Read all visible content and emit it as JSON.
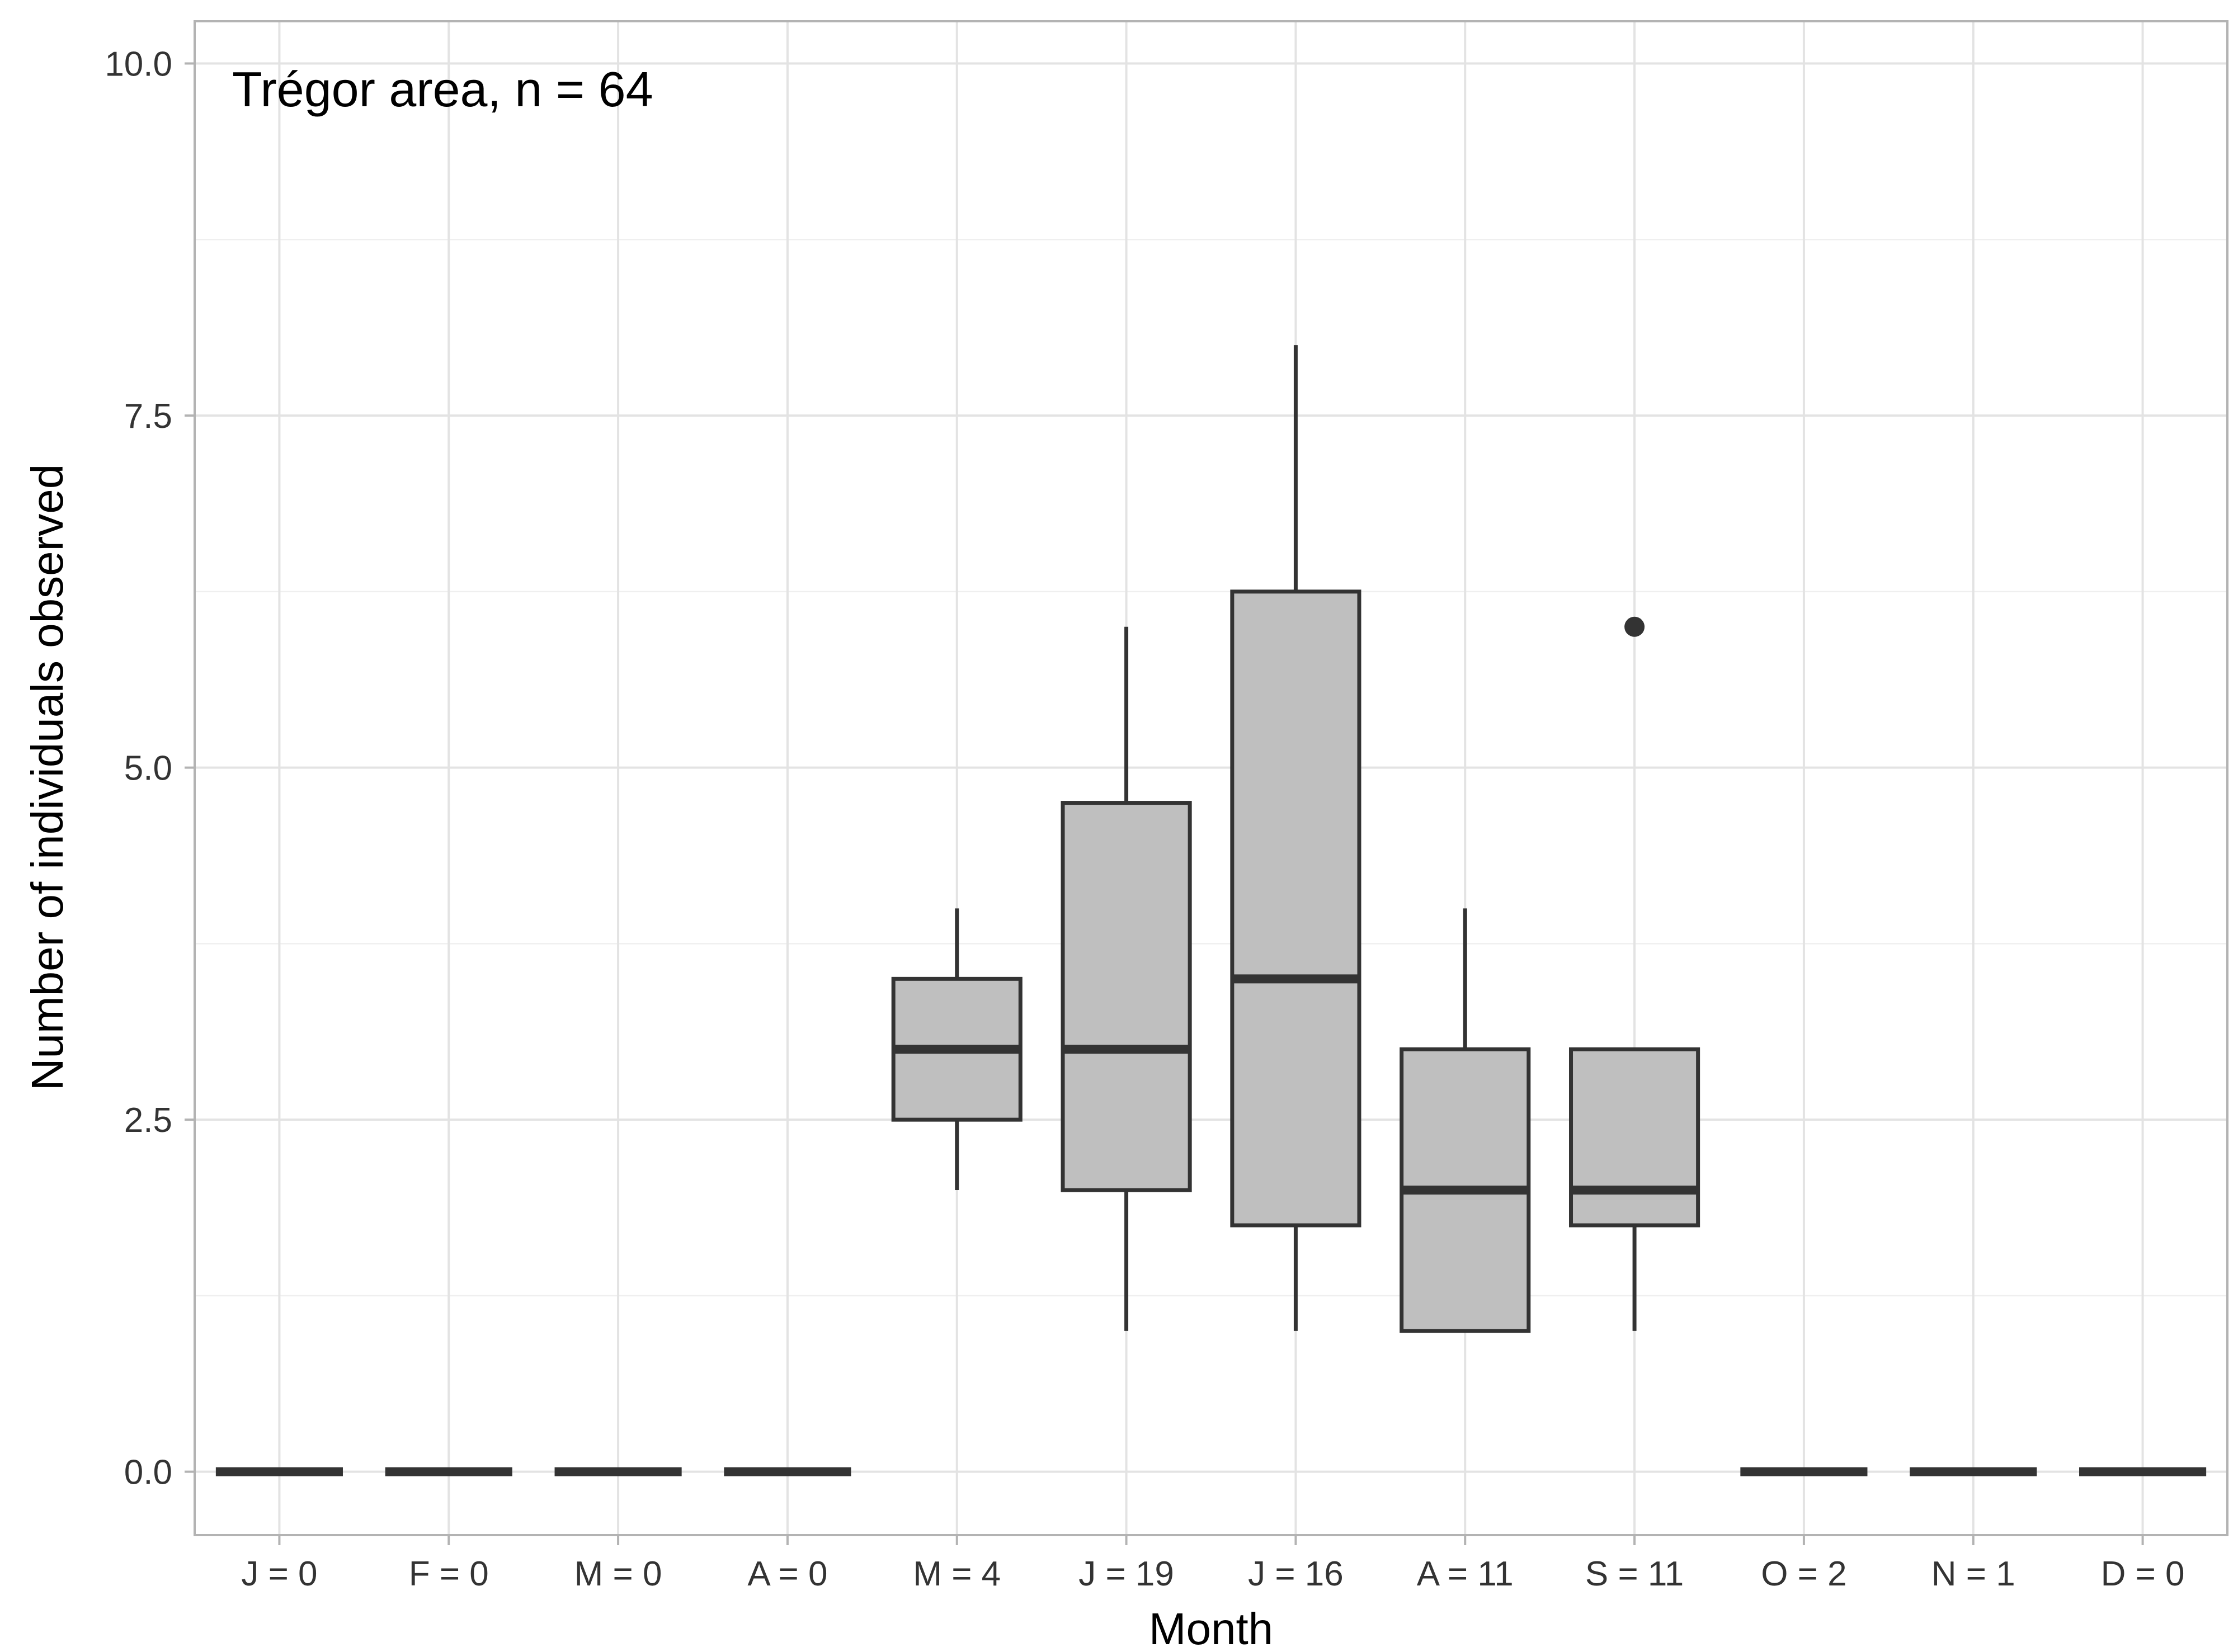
{
  "chart_data": {
    "type": "boxplot",
    "annotation": "Trégor area, n = 64",
    "xlabel": "Month",
    "ylabel": "Number of individuals observed",
    "ylim": [
      -0.45,
      10.3
    ],
    "yticks": [
      "0.0",
      "2.5",
      "5.0",
      "7.5",
      "10.0"
    ],
    "ytick_values": [
      0,
      2.5,
      5,
      7.5,
      10
    ],
    "categories": [
      "J = 0",
      "F = 0",
      "M = 0",
      "A = 0",
      "M = 4",
      "J = 19",
      "J = 16",
      "A = 11",
      "S = 11",
      "O = 2",
      "N = 1",
      "D = 0"
    ],
    "boxes": [
      {
        "min": 0,
        "q1": 0,
        "median": 0,
        "q3": 0,
        "max": 0,
        "outliers": []
      },
      {
        "min": 0,
        "q1": 0,
        "median": 0,
        "q3": 0,
        "max": 0,
        "outliers": []
      },
      {
        "min": 0,
        "q1": 0,
        "median": 0,
        "q3": 0,
        "max": 0,
        "outliers": []
      },
      {
        "min": 0,
        "q1": 0,
        "median": 0,
        "q3": 0,
        "max": 0,
        "outliers": []
      },
      {
        "min": 2,
        "q1": 2.5,
        "median": 3,
        "q3": 3.5,
        "max": 4,
        "outliers": []
      },
      {
        "min": 1,
        "q1": 2,
        "median": 3,
        "q3": 4.75,
        "max": 6,
        "outliers": []
      },
      {
        "min": 1,
        "q1": 1.75,
        "median": 3.5,
        "q3": 6.25,
        "max": 8,
        "outliers": []
      },
      {
        "min": 1,
        "q1": 1,
        "median": 2,
        "q3": 3,
        "max": 4,
        "outliers": []
      },
      {
        "min": 1,
        "q1": 1.75,
        "median": 2,
        "q3": 3,
        "max": 3,
        "outliers": [
          6
        ]
      },
      {
        "min": 0,
        "q1": 0,
        "median": 0,
        "q3": 0,
        "max": 0,
        "outliers": []
      },
      {
        "min": 0,
        "q1": 0,
        "median": 0,
        "q3": 0,
        "max": 0,
        "outliers": []
      },
      {
        "min": 0,
        "q1": 0,
        "median": 0,
        "q3": 0,
        "max": 0,
        "outliers": []
      }
    ],
    "box_fill": "#bfbfbf",
    "line_color": "#333333",
    "grid": true,
    "theme": "light"
  }
}
